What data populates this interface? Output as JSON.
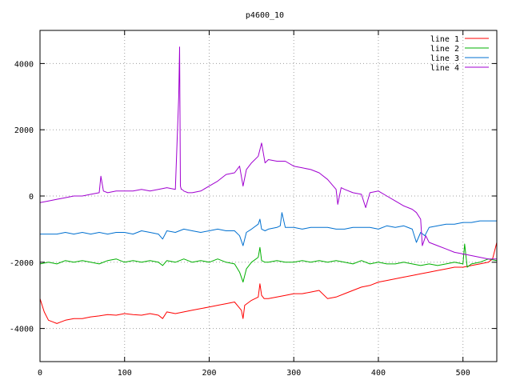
{
  "chart_data": {
    "type": "line",
    "title": "p4600_10",
    "xlabel": "",
    "ylabel": "",
    "xlim": [
      0,
      540
    ],
    "ylim": [
      -5000,
      5000
    ],
    "xticks": [
      0,
      100,
      200,
      300,
      400,
      500
    ],
    "yticks": [
      -4000,
      -2000,
      0,
      2000,
      4000
    ],
    "grid": true,
    "legend_position": "top-right",
    "series": [
      {
        "name": "line 1",
        "color": "#ff0000",
        "x": [
          0,
          5,
          10,
          15,
          20,
          25,
          30,
          40,
          50,
          60,
          70,
          80,
          90,
          100,
          110,
          120,
          130,
          140,
          145,
          150,
          160,
          170,
          180,
          190,
          200,
          210,
          220,
          230,
          238,
          240,
          242,
          250,
          258,
          260,
          262,
          265,
          270,
          280,
          290,
          300,
          310,
          320,
          330,
          340,
          350,
          360,
          370,
          380,
          390,
          400,
          410,
          420,
          430,
          440,
          450,
          460,
          470,
          480,
          490,
          500,
          510,
          520,
          530,
          535,
          540
        ],
        "y": [
          -3100,
          -3500,
          -3750,
          -3800,
          -3850,
          -3800,
          -3750,
          -3700,
          -3700,
          -3650,
          -3620,
          -3580,
          -3600,
          -3550,
          -3580,
          -3600,
          -3550,
          -3600,
          -3700,
          -3500,
          -3550,
          -3500,
          -3450,
          -3400,
          -3350,
          -3300,
          -3250,
          -3200,
          -3450,
          -3700,
          -3300,
          -3150,
          -3050,
          -2650,
          -3000,
          -3100,
          -3100,
          -3050,
          -3000,
          -2950,
          -2950,
          -2900,
          -2850,
          -3100,
          -3050,
          -2950,
          -2850,
          -2750,
          -2700,
          -2600,
          -2550,
          -2500,
          -2450,
          -2400,
          -2350,
          -2300,
          -2250,
          -2200,
          -2150,
          -2150,
          -2100,
          -2050,
          -2000,
          -1900,
          -1400
        ]
      },
      {
        "name": "line 2",
        "color": "#00b000",
        "x": [
          0,
          10,
          20,
          30,
          40,
          50,
          60,
          70,
          80,
          90,
          100,
          110,
          120,
          130,
          140,
          145,
          150,
          160,
          170,
          180,
          190,
          200,
          210,
          220,
          230,
          236,
          240,
          244,
          250,
          258,
          260,
          262,
          266,
          270,
          280,
          290,
          300,
          310,
          320,
          330,
          340,
          350,
          360,
          370,
          380,
          390,
          400,
          410,
          420,
          430,
          440,
          450,
          460,
          470,
          480,
          490,
          500,
          502,
          505,
          510,
          520,
          530,
          540
        ],
        "y": [
          -2050,
          -2000,
          -2050,
          -1950,
          -2000,
          -1950,
          -2000,
          -2050,
          -1950,
          -1900,
          -2000,
          -1950,
          -2000,
          -1950,
          -2000,
          -2100,
          -1950,
          -2000,
          -1900,
          -2000,
          -1950,
          -2000,
          -1900,
          -2000,
          -2050,
          -2300,
          -2600,
          -2200,
          -2000,
          -1850,
          -1550,
          -1950,
          -2000,
          -2000,
          -1950,
          -2000,
          -2000,
          -1950,
          -2000,
          -1950,
          -2000,
          -1950,
          -2000,
          -2050,
          -1950,
          -2050,
          -2000,
          -2050,
          -2050,
          -2000,
          -2050,
          -2100,
          -2050,
          -2100,
          -2050,
          -2000,
          -2050,
          -1450,
          -2150,
          -2050,
          -2000,
          -1900,
          -1950
        ]
      },
      {
        "name": "line 3",
        "color": "#0070d0",
        "x": [
          0,
          10,
          20,
          30,
          40,
          50,
          60,
          70,
          80,
          90,
          100,
          110,
          120,
          130,
          140,
          145,
          150,
          160,
          170,
          180,
          190,
          200,
          210,
          220,
          230,
          236,
          240,
          244,
          250,
          258,
          260,
          262,
          266,
          270,
          280,
          284,
          286,
          290,
          300,
          310,
          320,
          330,
          340,
          350,
          360,
          370,
          380,
          390,
          400,
          410,
          420,
          430,
          440,
          445,
          450,
          455,
          460,
          470,
          480,
          490,
          500,
          510,
          520,
          530,
          540
        ],
        "y": [
          -1150,
          -1150,
          -1150,
          -1100,
          -1150,
          -1100,
          -1150,
          -1100,
          -1150,
          -1100,
          -1100,
          -1150,
          -1050,
          -1100,
          -1150,
          -1300,
          -1050,
          -1100,
          -1000,
          -1050,
          -1100,
          -1050,
          -1000,
          -1050,
          -1050,
          -1200,
          -1500,
          -1100,
          -1000,
          -850,
          -700,
          -1000,
          -1050,
          -1000,
          -950,
          -900,
          -500,
          -950,
          -950,
          -1000,
          -950,
          -950,
          -950,
          -1000,
          -1000,
          -950,
          -950,
          -950,
          -1000,
          -900,
          -950,
          -900,
          -1000,
          -1400,
          -1100,
          -1200,
          -950,
          -900,
          -850,
          -850,
          -800,
          -800,
          -750,
          -750,
          -750
        ]
      },
      {
        "name": "line 4",
        "color": "#a000d0",
        "x": [
          0,
          10,
          20,
          30,
          40,
          50,
          60,
          70,
          72,
          75,
          80,
          90,
          100,
          110,
          120,
          130,
          140,
          150,
          160,
          164,
          165,
          166,
          167,
          168,
          170,
          175,
          180,
          190,
          200,
          210,
          220,
          230,
          236,
          240,
          244,
          250,
          258,
          262,
          266,
          270,
          280,
          290,
          300,
          310,
          320,
          330,
          340,
          350,
          352,
          356,
          360,
          370,
          380,
          385,
          390,
          400,
          410,
          420,
          430,
          440,
          445,
          450,
          452,
          456,
          460,
          470,
          480,
          490,
          500,
          510,
          520,
          530,
          540
        ],
        "y": [
          -200,
          -150,
          -100,
          -50,
          0,
          0,
          50,
          100,
          600,
          150,
          100,
          150,
          150,
          150,
          200,
          150,
          200,
          250,
          200,
          3000,
          4500,
          300,
          200,
          200,
          150,
          100,
          100,
          150,
          300,
          450,
          650,
          700,
          900,
          300,
          800,
          1000,
          1200,
          1600,
          1000,
          1100,
          1050,
          1050,
          900,
          850,
          800,
          700,
          500,
          200,
          -250,
          250,
          200,
          100,
          50,
          -350,
          100,
          150,
          0,
          -150,
          -300,
          -400,
          -500,
          -700,
          -1500,
          -1200,
          -1400,
          -1500,
          -1600,
          -1700,
          -1750,
          -1800,
          -1850,
          -1900,
          -1900
        ]
      }
    ]
  }
}
